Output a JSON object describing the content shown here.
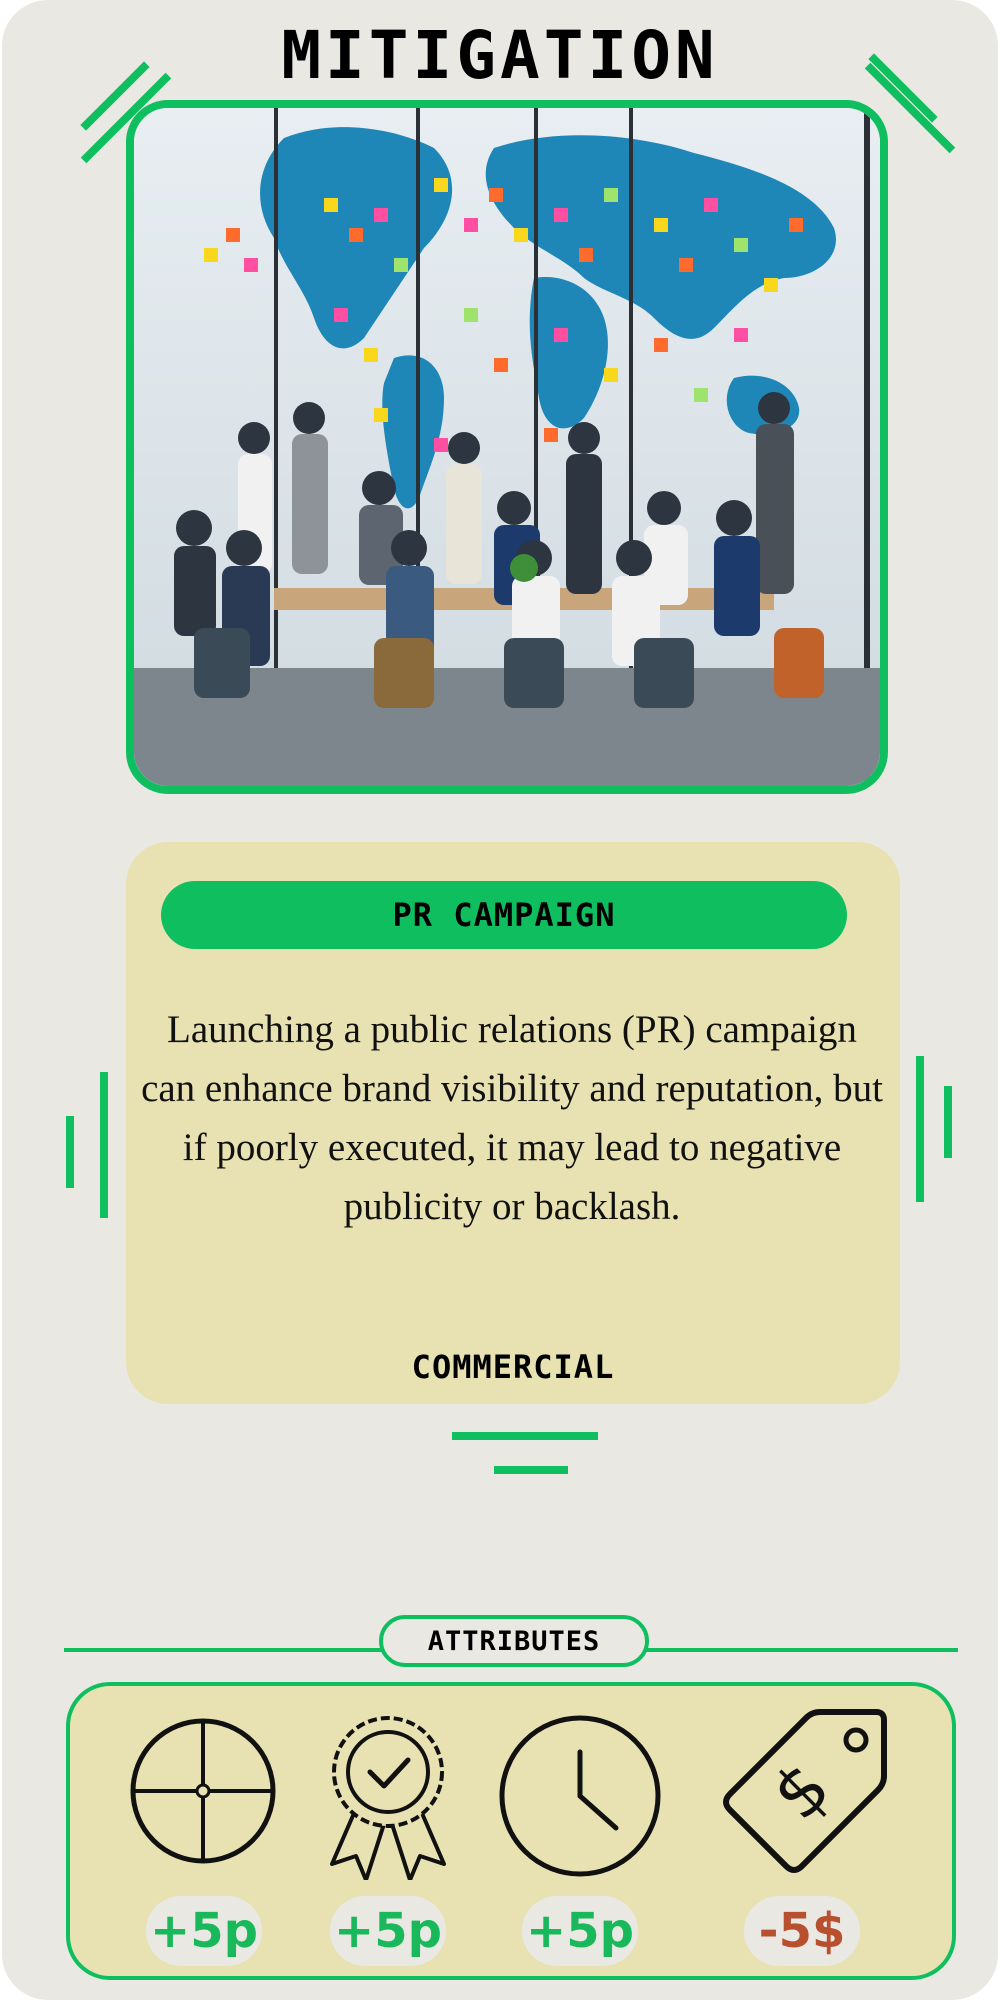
{
  "card": {
    "type_title": "MITIGATION",
    "name": "PR CAMPAIGN",
    "description": "Launching a public relations (PR) campaign can enhance brand visibility and reputation, but if poorly executed, it may lead to negative publicity or backlash.",
    "category": "COMMERCIAL",
    "attributes_label": "ATTRIBUTES",
    "attributes": [
      {
        "icon": "crosshair-icon",
        "value": "+5p",
        "color": "#19b85a"
      },
      {
        "icon": "award-ribbon-icon",
        "value": "+5p",
        "color": "#19b85a"
      },
      {
        "icon": "clock-icon",
        "value": "+5p",
        "color": "#19b85a"
      },
      {
        "icon": "price-tag-dollar-icon",
        "value": "-5$",
        "color": "#b8502f"
      }
    ]
  },
  "colors": {
    "accent_green": "#0fbf5f",
    "panel_beige": "#e8e2b2",
    "card_background": "#e9e8e3"
  },
  "illustration": {
    "subject": "team meeting in front of a world map covered with sticky notes"
  }
}
